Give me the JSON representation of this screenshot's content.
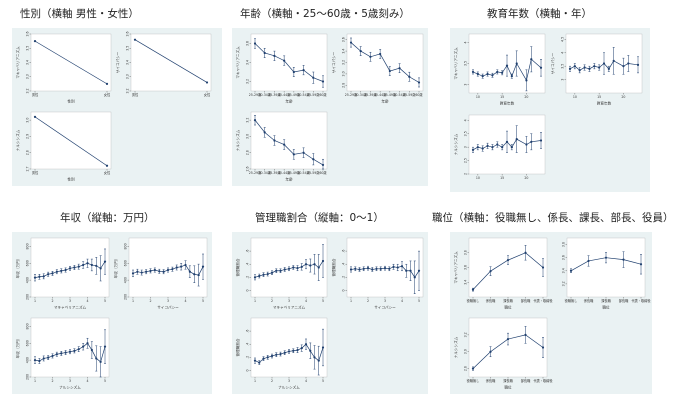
{
  "sections": {
    "gender": {
      "title": "性別（横軸 男性・女性）"
    },
    "age": {
      "title": "年齢（横軸・25～60歳・5歳刻み）"
    },
    "education": {
      "title": "教育年数（横軸・年）"
    },
    "income": {
      "title": "年収（縦軸：万円）"
    },
    "manager": {
      "title": "管理職割合（縦軸：0～1）"
    },
    "position": {
      "title": "職位（横軸：役職無し、係長、課長、部長、役員）"
    }
  },
  "colors": {
    "panel_bg": "#eaf2f3",
    "line": "#1f3f6e",
    "plot_bg": "#ffffff"
  },
  "chart_data": [
    {
      "id": "gender-mach",
      "type": "line",
      "categories": [
        "男性",
        "女性"
      ],
      "values": [
        3.55,
        3.25
      ],
      "ylim": [
        3.2,
        3.6
      ],
      "yticks": [
        "3.2",
        "3.3",
        "3.4",
        "3.5",
        "3.6"
      ],
      "xlabel": "性別",
      "ylabel": "マキャベリアニズム"
    },
    {
      "id": "gender-psy",
      "type": "line",
      "categories": [
        "男性",
        "女性"
      ],
      "values": [
        3.56,
        3.26
      ],
      "ylim": [
        3.2,
        3.6
      ],
      "yticks": [
        "3.2",
        "3.3",
        "3.4",
        "3.5",
        "3.6"
      ],
      "xlabel": "",
      "ylabel": "サイコパシー"
    },
    {
      "id": "gender-nar",
      "type": "line",
      "categories": [
        "男性",
        "女性"
      ],
      "values": [
        3.02,
        2.72
      ],
      "ylim": [
        2.7,
        3.05
      ],
      "yticks": [
        "2.7",
        "2.8",
        "2.9",
        "3.0"
      ],
      "xlabel": "性別",
      "ylabel": "ナルシシズム"
    },
    {
      "id": "age-mach",
      "type": "line",
      "categories": [
        "25-29歳",
        "30-34歳",
        "35-39歳",
        "40-44歳",
        "45-49歳",
        "50-54歳",
        "55-59歳",
        "60歳"
      ],
      "values": [
        3.6,
        3.5,
        3.47,
        3.42,
        3.3,
        3.32,
        3.24,
        3.2
      ],
      "errors": [
        0.05,
        0.05,
        0.05,
        0.05,
        0.05,
        0.05,
        0.06,
        0.06
      ],
      "ylim": [
        3.1,
        3.7
      ],
      "yticks": [
        "3.2",
        "3.4",
        "3.6"
      ],
      "xlabel": "年齢",
      "ylabel": "マキャベリアニズム"
    },
    {
      "id": "age-psy",
      "type": "line",
      "categories": [
        "25-29歳",
        "30-34歳",
        "35-39歳",
        "40-44歳",
        "45-49歳",
        "50-54歳",
        "55-59歳",
        "60歳"
      ],
      "values": [
        3.55,
        3.4,
        3.3,
        3.35,
        3.05,
        3.1,
        2.95,
        2.85
      ],
      "errors": [
        0.08,
        0.08,
        0.08,
        0.08,
        0.08,
        0.08,
        0.08,
        0.08
      ],
      "ylim": [
        2.7,
        3.7
      ],
      "yticks": [
        "2.8",
        "3.0",
        "3.2",
        "3.4",
        "3.6"
      ],
      "xlabel": "年齢",
      "ylabel": "サイコパシー"
    },
    {
      "id": "age-nar",
      "type": "line",
      "categories": [
        "25-29歳",
        "30-34歳",
        "35-39歳",
        "40-44歳",
        "45-49歳",
        "50-54歳",
        "55-59歳",
        "60歳"
      ],
      "values": [
        3.2,
        3.05,
        2.95,
        2.9,
        2.78,
        2.8,
        2.72,
        2.65
      ],
      "errors": [
        0.06,
        0.06,
        0.06,
        0.06,
        0.06,
        0.06,
        0.07,
        0.07
      ],
      "ylim": [
        2.6,
        3.3
      ],
      "yticks": [
        "2.6",
        "2.8",
        "3.0",
        "3.2"
      ],
      "xlabel": "年齢",
      "ylabel": "ナルシシズム"
    },
    {
      "id": "edu-mach",
      "type": "line",
      "x": [
        9,
        10,
        11,
        12,
        13,
        14,
        15,
        16,
        17,
        18,
        20,
        21,
        23
      ],
      "values": [
        3.3,
        3.25,
        3.2,
        3.25,
        3.22,
        3.3,
        3.28,
        3.45,
        3.2,
        3.5,
        3.1,
        3.6,
        3.4
      ],
      "errors": [
        0.05,
        0.05,
        0.05,
        0.05,
        0.05,
        0.05,
        0.05,
        0.25,
        0.05,
        0.3,
        0.25,
        0.3,
        0.2
      ],
      "ylim": [
        2.8,
        4.2
      ],
      "yticks": [
        "3",
        "3.5",
        "4"
      ],
      "xtick_values": [
        10,
        15,
        20
      ],
      "xlabel": "教育年数",
      "ylabel": "マキャベリアニズム"
    },
    {
      "id": "edu-psy",
      "type": "line",
      "x": [
        9,
        10,
        11,
        12,
        13,
        14,
        15,
        16,
        17,
        18,
        20,
        21,
        23
      ],
      "values": [
        3.4,
        3.5,
        3.35,
        3.45,
        3.4,
        3.5,
        3.45,
        3.6,
        3.4,
        3.7,
        3.5,
        3.6,
        3.55
      ],
      "errors": [
        0.1,
        0.1,
        0.1,
        0.1,
        0.1,
        0.1,
        0.1,
        0.4,
        0.1,
        0.5,
        0.3,
        0.3,
        0.3
      ],
      "ylim": [
        2.5,
        4.7
      ],
      "yticks": [
        "3",
        "3.5",
        "4",
        "4.5"
      ],
      "xtick_values": [
        10,
        15,
        20
      ],
      "xlabel": "教育年数",
      "ylabel": "サイコパシー"
    },
    {
      "id": "edu-nar",
      "type": "line",
      "x": [
        9,
        10,
        11,
        12,
        13,
        14,
        15,
        16,
        17,
        18,
        20,
        21,
        23
      ],
      "values": [
        2.9,
        3.0,
        2.95,
        3.05,
        3.0,
        3.1,
        3.0,
        3.2,
        3.0,
        3.3,
        3.1,
        3.2,
        3.25
      ],
      "errors": [
        0.1,
        0.1,
        0.1,
        0.1,
        0.1,
        0.1,
        0.1,
        0.4,
        0.1,
        0.5,
        0.3,
        0.3,
        0.3
      ],
      "ylim": [
        2.0,
        4.2
      ],
      "yticks": [
        "2",
        "2.5",
        "3",
        "3.5",
        "4"
      ],
      "xtick_values": [
        10,
        15,
        20
      ],
      "xlabel": "",
      "ylabel": "ナルシシズム"
    },
    {
      "id": "inc-mach",
      "type": "line",
      "x": [
        1,
        1.25,
        1.5,
        1.75,
        2,
        2.25,
        2.5,
        2.75,
        3,
        3.25,
        3.5,
        3.75,
        4,
        4.25,
        4.5,
        4.75,
        5
      ],
      "values": [
        430,
        440,
        445,
        470,
        480,
        500,
        510,
        520,
        540,
        550,
        560,
        580,
        600,
        580,
        570,
        540,
        620
      ],
      "errors": [
        40,
        30,
        30,
        25,
        25,
        25,
        25,
        25,
        25,
        25,
        30,
        40,
        50,
        70,
        100,
        150,
        150
      ],
      "ylim": [
        200,
        900
      ],
      "yticks": [
        "200",
        "400",
        "600",
        "800"
      ],
      "xtick_values": [
        1,
        2,
        3,
        4,
        5
      ],
      "xlabel": "マキャベリアニズム",
      "ylabel": "年収（万円）"
    },
    {
      "id": "inc-psy",
      "type": "line",
      "x": [
        1,
        1.25,
        1.5,
        1.75,
        2,
        2.25,
        2.5,
        2.75,
        3,
        3.25,
        3.5,
        3.75,
        4,
        4.25,
        4.5,
        4.75,
        5
      ],
      "values": [
        480,
        500,
        490,
        500,
        510,
        520,
        505,
        500,
        520,
        530,
        550,
        560,
        580,
        500,
        470,
        460,
        560
      ],
      "errors": [
        40,
        30,
        30,
        25,
        25,
        25,
        25,
        25,
        25,
        25,
        30,
        40,
        50,
        70,
        100,
        130,
        150
      ],
      "ylim": [
        200,
        900
      ],
      "yticks": [
        "200",
        "400",
        "600",
        "800"
      ],
      "xtick_values": [
        1,
        2,
        3,
        4,
        5
      ],
      "xlabel": "サイコパシー",
      "ylabel": "年収（万円）"
    },
    {
      "id": "inc-nar",
      "type": "line",
      "x": [
        1,
        1.25,
        1.5,
        1.75,
        2,
        2.25,
        2.5,
        2.75,
        3,
        3.25,
        3.5,
        3.75,
        4,
        4.25,
        4.5,
        4.75,
        5
      ],
      "values": [
        400,
        390,
        420,
        430,
        450,
        470,
        480,
        490,
        500,
        510,
        530,
        560,
        600,
        520,
        420,
        380,
        560
      ],
      "errors": [
        40,
        30,
        30,
        25,
        25,
        25,
        25,
        25,
        25,
        25,
        30,
        40,
        60,
        100,
        150,
        180,
        200
      ],
      "ylim": [
        200,
        900
      ],
      "yticks": [
        "200",
        "400",
        "600",
        "800"
      ],
      "xtick_values": [
        1,
        2,
        3,
        4,
        5
      ],
      "xlabel": "ナルシシズム",
      "ylabel": "年収（万円）"
    },
    {
      "id": "mgr-mach",
      "type": "line",
      "x": [
        1,
        1.25,
        1.5,
        1.75,
        2,
        2.25,
        2.5,
        2.75,
        3,
        3.25,
        3.5,
        3.75,
        4,
        4.25,
        4.5,
        4.75,
        5
      ],
      "values": [
        0.2,
        0.22,
        0.24,
        0.25,
        0.27,
        0.3,
        0.3,
        0.32,
        0.33,
        0.35,
        0.34,
        0.36,
        0.4,
        0.38,
        0.4,
        0.35,
        0.45
      ],
      "errors": [
        0.04,
        0.03,
        0.03,
        0.03,
        0.03,
        0.03,
        0.03,
        0.03,
        0.03,
        0.03,
        0.04,
        0.05,
        0.07,
        0.1,
        0.15,
        0.2,
        0.25
      ],
      "ylim": [
        -0.1,
        0.8
      ],
      "yticks": [
        "0",
        ".2",
        ".4",
        ".6"
      ],
      "xtick_values": [
        1,
        2,
        3,
        4,
        5
      ],
      "xlabel": "マキャベリアニズム",
      "ylabel": "管理職割合"
    },
    {
      "id": "mgr-psy",
      "type": "line",
      "x": [
        1,
        1.25,
        1.5,
        1.75,
        2,
        2.25,
        2.5,
        2.75,
        3,
        3.25,
        3.5,
        3.75,
        4,
        4.25,
        4.5,
        4.75,
        5
      ],
      "values": [
        0.32,
        0.33,
        0.32,
        0.33,
        0.34,
        0.32,
        0.33,
        0.33,
        0.34,
        0.33,
        0.36,
        0.35,
        0.37,
        0.3,
        0.3,
        0.2,
        0.3
      ],
      "errors": [
        0.04,
        0.03,
        0.03,
        0.03,
        0.03,
        0.03,
        0.03,
        0.03,
        0.03,
        0.03,
        0.04,
        0.05,
        0.07,
        0.1,
        0.15,
        0.25,
        0.3
      ],
      "ylim": [
        -0.1,
        0.8
      ],
      "yticks": [
        "0",
        ".2",
        ".4",
        ".6"
      ],
      "xtick_values": [
        1,
        2,
        3,
        4,
        5
      ],
      "xlabel": "サイコパシー",
      "ylabel": "管理職割合"
    },
    {
      "id": "mgr-nar",
      "type": "line",
      "x": [
        1,
        1.25,
        1.5,
        1.75,
        2,
        2.25,
        2.5,
        2.75,
        3,
        3.25,
        3.5,
        3.75,
        4,
        4.25,
        4.5,
        4.75,
        5
      ],
      "values": [
        0.15,
        0.12,
        0.18,
        0.2,
        0.22,
        0.24,
        0.25,
        0.27,
        0.29,
        0.3,
        0.31,
        0.34,
        0.4,
        0.3,
        0.2,
        0.15,
        0.35
      ],
      "errors": [
        0.04,
        0.03,
        0.03,
        0.03,
        0.03,
        0.03,
        0.03,
        0.03,
        0.03,
        0.03,
        0.04,
        0.05,
        0.08,
        0.12,
        0.18,
        0.22,
        0.28
      ],
      "ylim": [
        -0.1,
        0.8
      ],
      "yticks": [
        "0",
        ".2",
        ".4",
        ".6"
      ],
      "xtick_values": [
        1,
        2,
        3,
        4,
        5
      ],
      "xlabel": "ナルシシズム",
      "ylabel": "管理職割合"
    },
    {
      "id": "pos-mach",
      "type": "line",
      "categories": [
        "役職無し",
        "係長職",
        "課長職",
        "部長職",
        "代表・取締役"
      ],
      "values": [
        3.3,
        3.55,
        3.7,
        3.8,
        3.6
      ],
      "errors": [
        0.02,
        0.06,
        0.06,
        0.1,
        0.12
      ],
      "ylim": [
        3.2,
        4.0
      ],
      "yticks": [
        "3.4",
        "3.6",
        "3.8"
      ],
      "xlabel": "職位",
      "ylabel": "マキャベリアニズム"
    },
    {
      "id": "pos-psy",
      "type": "line",
      "categories": [
        "役職無し",
        "係長職",
        "課長職",
        "部長職",
        "代表・取締役"
      ],
      "values": [
        3.4,
        3.55,
        3.6,
        3.57,
        3.5
      ],
      "errors": [
        0.03,
        0.08,
        0.08,
        0.12,
        0.15
      ],
      "ylim": [
        3.0,
        3.9
      ],
      "yticks": [
        "3.2",
        "3.4",
        "3.6",
        "3.8"
      ],
      "xlabel": "職位",
      "ylabel": ""
    },
    {
      "id": "pos-nar",
      "type": "line",
      "categories": [
        "役職無し",
        "係長職",
        "課長職",
        "部長職",
        "代表・取締役"
      ],
      "values": [
        2.8,
        3.0,
        3.15,
        3.2,
        3.05
      ],
      "errors": [
        0.02,
        0.06,
        0.07,
        0.1,
        0.12
      ],
      "ylim": [
        2.7,
        3.4
      ],
      "yticks": [
        "2.8",
        "3.0",
        "3.2"
      ],
      "xlabel": "職位",
      "ylabel": "ナルシシズム"
    }
  ]
}
